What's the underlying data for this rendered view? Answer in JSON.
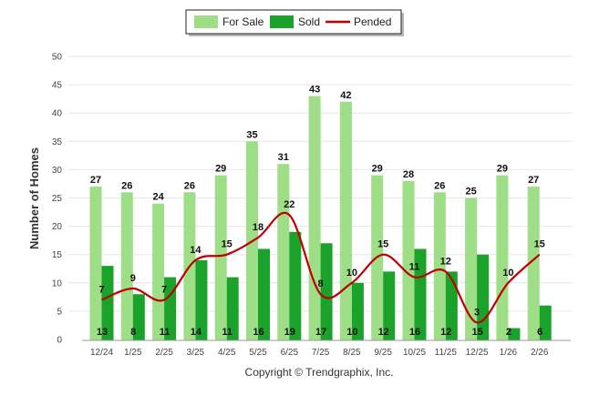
{
  "chart_data": {
    "type": "bar",
    "categories": [
      "12/24",
      "1/25",
      "2/25",
      "3/25",
      "4/25",
      "5/25",
      "6/25",
      "7/25",
      "8/25",
      "9/25",
      "10/25",
      "11/25",
      "12/25",
      "1/26",
      "2/26"
    ],
    "series": [
      {
        "name": "For Sale",
        "type": "bar",
        "color": "#9EDE86",
        "values": [
          27,
          26,
          24,
          26,
          29,
          35,
          31,
          43,
          42,
          29,
          28,
          26,
          25,
          29,
          27
        ]
      },
      {
        "name": "Sold",
        "type": "bar",
        "color": "#1AA22A",
        "values": [
          13,
          8,
          11,
          14,
          11,
          16,
          19,
          17,
          10,
          12,
          16,
          12,
          15,
          2,
          6
        ]
      },
      {
        "name": "Pended",
        "type": "line",
        "color": "#C00000",
        "values": [
          7,
          9,
          7,
          14,
          15,
          18,
          22,
          8,
          10,
          15,
          11,
          12,
          3,
          10,
          15
        ]
      }
    ],
    "ylabel": "Number of Homes",
    "xlabel": "",
    "ylim": [
      0,
      50
    ],
    "yticks": [
      0,
      5,
      10,
      15,
      20,
      25,
      30,
      35,
      40,
      45,
      50
    ],
    "grid": true,
    "legend_position": "top-center"
  },
  "footer": {
    "copyright": "Copyright © Trendgraphix, Inc."
  }
}
